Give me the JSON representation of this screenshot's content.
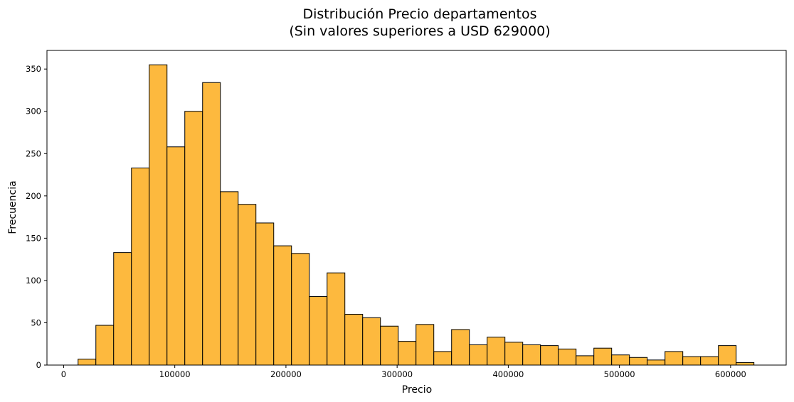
{
  "chart_data": {
    "type": "bar",
    "title_line1": "Distribución Precio departamentos",
    "title_line2": "(Sin valores superiores a USD 629000)",
    "xlabel": "Precio",
    "ylabel": "Frecuencia",
    "xlim": [
      -15000,
      650000
    ],
    "ylim": [
      0,
      372
    ],
    "xticks": [
      0,
      100000,
      200000,
      300000,
      400000,
      500000,
      600000
    ],
    "xtick_labels": [
      "0",
      "100000",
      "200000",
      "300000",
      "400000",
      "500000",
      "600000"
    ],
    "yticks": [
      0,
      50,
      100,
      150,
      200,
      250,
      300,
      350
    ],
    "ytick_labels": [
      "0",
      "50",
      "100",
      "150",
      "200",
      "250",
      "300",
      "350"
    ],
    "bin_start": 13000,
    "bin_width": 16000,
    "counts": [
      7,
      47,
      133,
      233,
      355,
      258,
      300,
      334,
      205,
      190,
      168,
      141,
      132,
      81,
      109,
      60,
      56,
      46,
      28,
      48,
      16,
      42,
      24,
      33,
      27,
      24,
      23,
      19,
      11,
      20,
      12,
      9,
      6,
      16,
      10,
      10,
      23,
      3
    ],
    "bar_color": "#fdb93e",
    "edge_color": "#000000",
    "grid": false,
    "legend": "none"
  }
}
